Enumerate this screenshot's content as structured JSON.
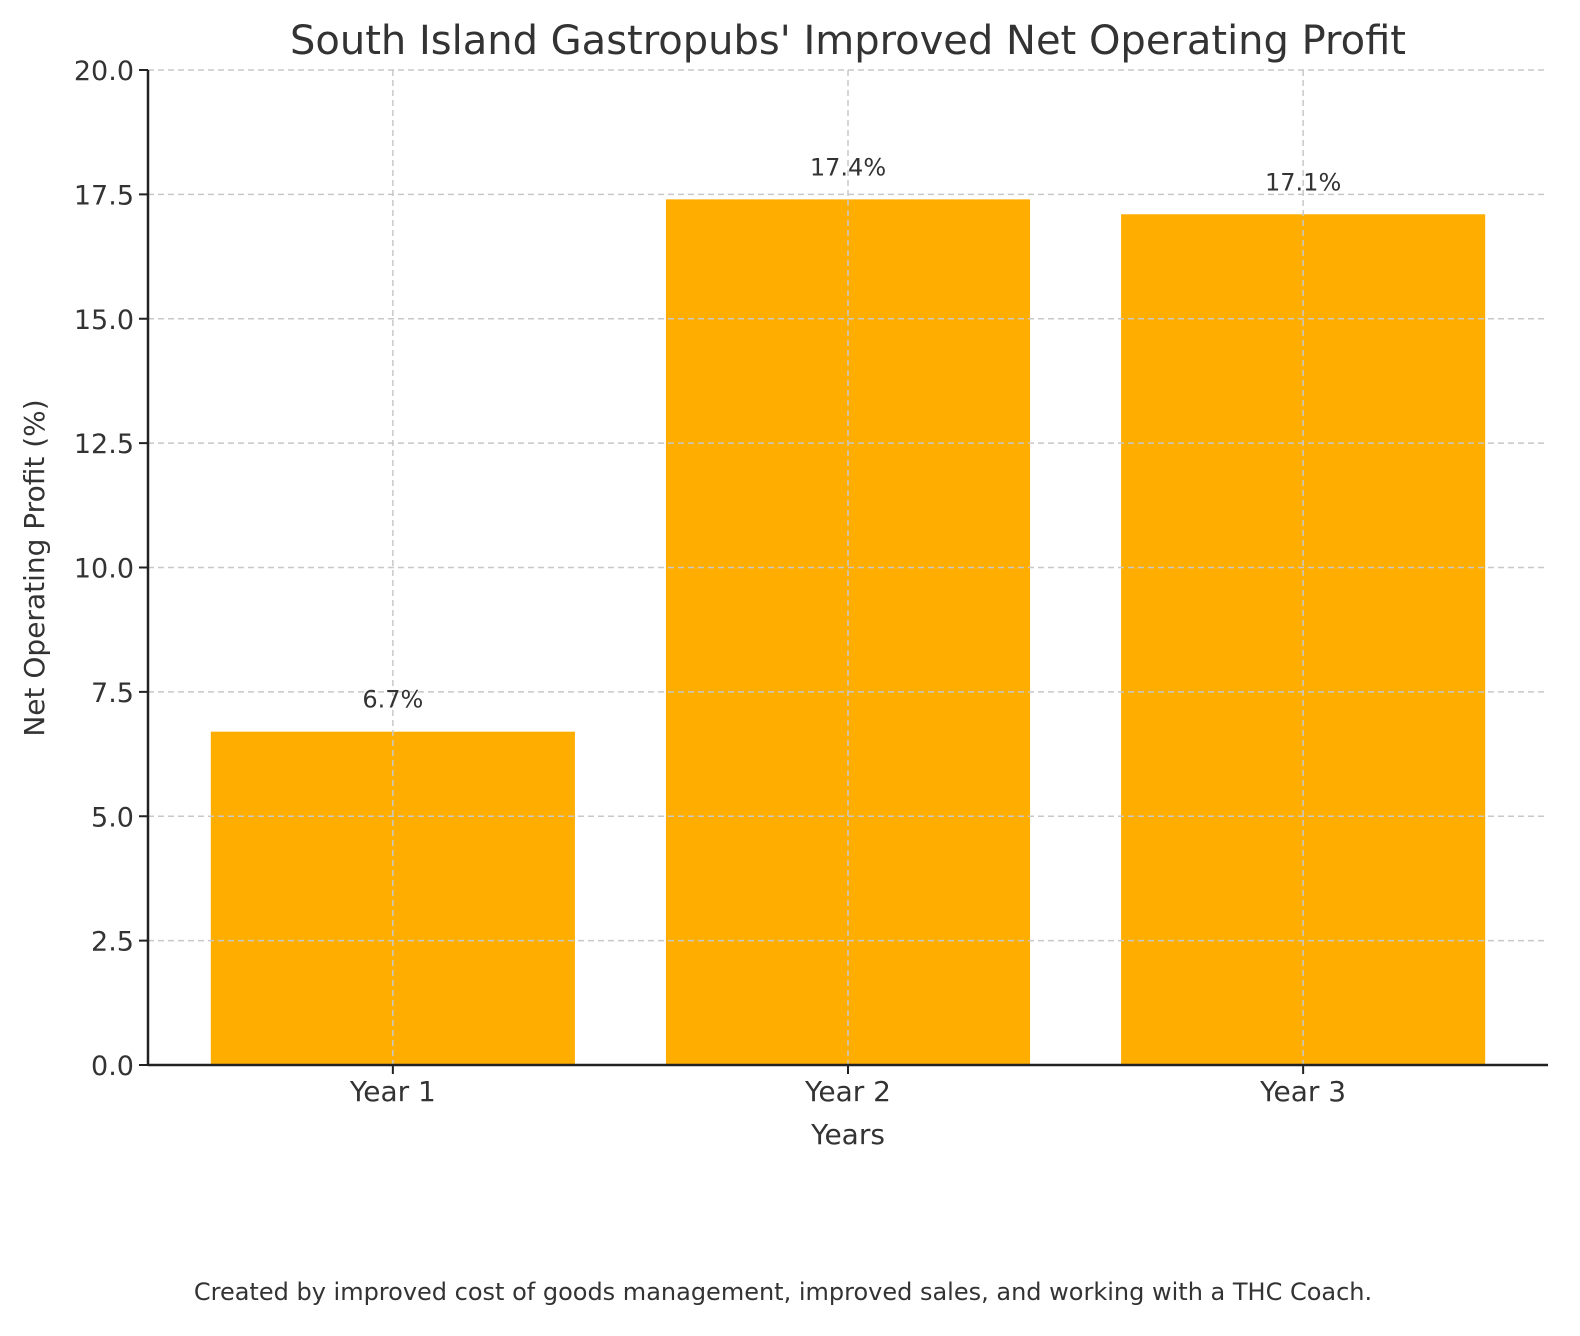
{
  "chart_data": {
    "type": "bar",
    "title": "South Island Gastropubs' Improved Net Operating Profit",
    "xlabel": "Years",
    "ylabel": "Net Operating Profit (%)",
    "categories": [
      "Year 1",
      "Year 2",
      "Year 3"
    ],
    "values": [
      6.7,
      17.4,
      17.1
    ],
    "data_labels": [
      "6.7%",
      "17.4%",
      "17.1%"
    ],
    "ylim": [
      0,
      20
    ],
    "yticks": [
      "0.0",
      "2.5",
      "5.0",
      "7.5",
      "10.0",
      "12.5",
      "15.0",
      "17.5",
      "20.0"
    ],
    "grid": true,
    "bar_color": "#FFAE00",
    "footnote": "Created by improved cost of goods management, improved sales, and working with a THC Coach."
  }
}
